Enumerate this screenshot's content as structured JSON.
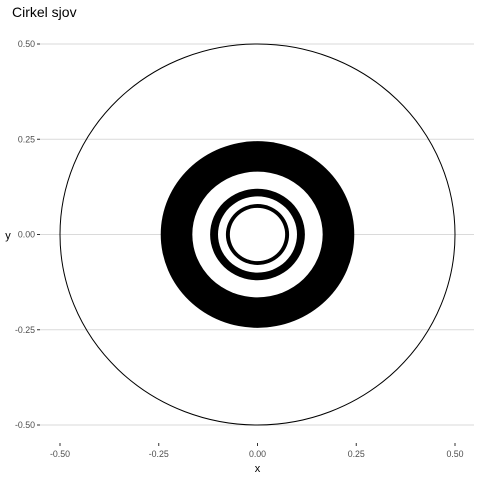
{
  "chart_data": {
    "type": "scatter",
    "title": "Cirkel sjov",
    "xlabel": "x",
    "ylabel": "y",
    "xlim": [
      -0.5,
      0.5
    ],
    "ylim": [
      -0.5,
      0.5
    ],
    "x_ticks": [
      -0.5,
      -0.25,
      0.0,
      0.25,
      0.5
    ],
    "x_tick_labels": [
      "-0.50",
      "-0.25",
      "0.00",
      "0.25",
      "0.50"
    ],
    "y_ticks": [
      -0.5,
      -0.25,
      0.0,
      0.25,
      0.5
    ],
    "y_tick_labels": [
      "-0.50",
      "-0.25",
      "0.00",
      "0.25",
      "0.50"
    ],
    "grid": "horizontal",
    "legend": "none",
    "circles": [
      {
        "center": [
          0,
          0
        ],
        "radius": 0.5,
        "fill": "none"
      },
      {
        "center": [
          0,
          0
        ],
        "radius": 0.245,
        "fill": "#000000"
      },
      {
        "center": [
          0,
          0
        ],
        "radius": 0.165,
        "fill": "#ffffff"
      },
      {
        "center": [
          0,
          0
        ],
        "radius": 0.12,
        "fill": "#000000"
      },
      {
        "center": [
          0,
          0
        ],
        "radius": 0.1,
        "fill": "#ffffff"
      },
      {
        "center": [
          0,
          0
        ],
        "radius": 0.08,
        "fill": "#000000"
      },
      {
        "center": [
          0,
          0
        ],
        "radius": 0.07,
        "fill": "#ffffff"
      }
    ],
    "colors": {
      "grid": "#dadada",
      "outline": "#000000",
      "tick_text": "#4d4d4d"
    }
  }
}
